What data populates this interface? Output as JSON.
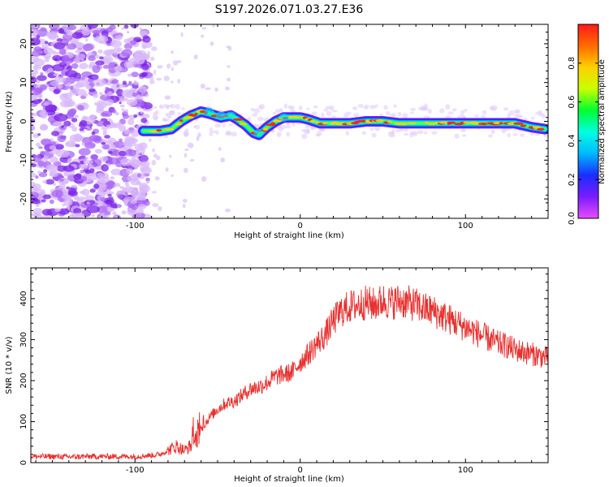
{
  "title": "S197.2026.071.03.27.E36",
  "colors": {
    "signal": "#e8302e",
    "noise": "#9040e0"
  },
  "chart_data": [
    {
      "type": "heatmap",
      "xlabel": "Height of straight line (km)",
      "ylabel": "Frequency (Hz)",
      "xlim": [
        -163,
        150
      ],
      "ylim": [
        -25,
        25
      ],
      "xticks": [
        -100,
        0,
        100
      ],
      "xtick_labels": [
        "-100",
        "0",
        "100"
      ],
      "yticks": [
        20,
        10,
        0,
        -10,
        -20
      ],
      "ytick_labels": [
        "20",
        "10",
        "0",
        "-10",
        "-20"
      ],
      "ridge": {
        "x": [
          -95,
          -85,
          -78,
          -72,
          -66,
          -60,
          -55,
          -48,
          -42,
          -38,
          -33,
          -28,
          -25,
          -20,
          -15,
          -10,
          -5,
          0,
          5,
          12,
          20,
          30,
          40,
          50,
          60,
          70,
          80,
          90,
          100,
          110,
          120,
          130,
          140,
          148
        ],
        "y": [
          -2.5,
          -2.5,
          -2,
          0,
          1.5,
          2.5,
          2,
          1,
          1.5,
          0.5,
          -1,
          -3,
          -3.5,
          -1.5,
          0,
          1,
          1,
          1,
          0.5,
          -0.5,
          -0.5,
          -0.5,
          0,
          0,
          -0.5,
          -0.5,
          -0.5,
          -0.5,
          -0.5,
          -0.5,
          -0.5,
          -0.5,
          -1.5,
          -2
        ]
      },
      "colorbar": {
        "label": "Normalized spectral amplitude",
        "range": [
          0,
          1
        ],
        "ticks": [
          0.0,
          0.2,
          0.4,
          0.6,
          0.8
        ],
        "tick_labels": [
          "0.0",
          "0.2",
          "0.4",
          "0.6",
          "0.8"
        ],
        "stops": [
          "#e84cff",
          "#7a1cff",
          "#1a2dff",
          "#00b8ff",
          "#00ffe0",
          "#00ff30",
          "#c8ff00",
          "#ffd000",
          "#ff6a00",
          "#ff1a1a"
        ]
      }
    },
    {
      "type": "line",
      "xlabel": "Height of straight line (km)",
      "ylabel": "SNR (10 * v/v)",
      "xlim": [
        -163,
        150
      ],
      "ylim": [
        0,
        475
      ],
      "xticks": [
        -100,
        0,
        100
      ],
      "xtick_labels": [
        "-100",
        "0",
        "100"
      ],
      "yticks": [
        0,
        100,
        200,
        300,
        400
      ],
      "ytick_labels": [
        "0",
        "100",
        "200",
        "300",
        "400"
      ],
      "series": [
        {
          "name": "SNR",
          "x": [
            -163,
            -150,
            -140,
            -130,
            -120,
            -110,
            -100,
            -90,
            -85,
            -80,
            -75,
            -70,
            -65,
            -60,
            -55,
            -50,
            -45,
            -40,
            -35,
            -30,
            -25,
            -20,
            -15,
            -10,
            -5,
            0,
            5,
            10,
            15,
            20,
            25,
            30,
            35,
            40,
            45,
            50,
            55,
            60,
            65,
            70,
            75,
            80,
            85,
            90,
            95,
            100,
            105,
            110,
            115,
            120,
            125,
            130,
            135,
            140,
            145,
            150
          ],
          "y": [
            15,
            15,
            14,
            15,
            15,
            15,
            15,
            18,
            20,
            30,
            40,
            30,
            45,
            80,
            110,
            130,
            145,
            150,
            165,
            180,
            185,
            195,
            210,
            215,
            220,
            245,
            265,
            290,
            310,
            345,
            370,
            380,
            385,
            390,
            385,
            395,
            390,
            395,
            390,
            385,
            375,
            370,
            360,
            350,
            340,
            330,
            320,
            310,
            300,
            290,
            285,
            275,
            270,
            265,
            260,
            255
          ]
        }
      ]
    }
  ]
}
